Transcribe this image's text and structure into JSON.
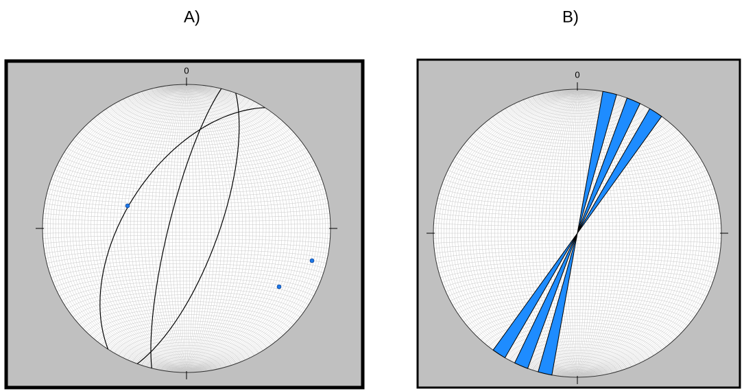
{
  "panels": [
    {
      "label": "A)",
      "north": "0"
    },
    {
      "label": "B)",
      "north": "0"
    }
  ]
}
